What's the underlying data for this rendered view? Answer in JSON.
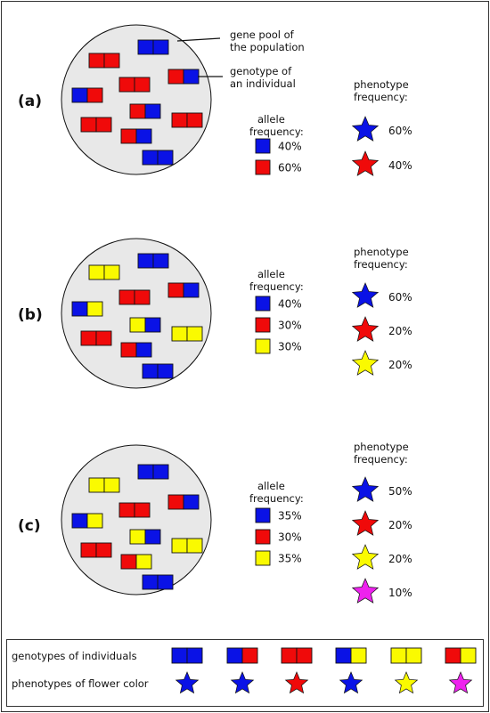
{
  "colors": {
    "blue": "#0a12e6",
    "red": "#f00a0a",
    "yellow": "#fafa00",
    "magenta": "#ee22ee",
    "circle_fill": "#e8e8e8",
    "outline": "#111111"
  },
  "annotations": {
    "gene_pool": [
      "gene pool of",
      "the population"
    ],
    "genotype": [
      "genotype of",
      "an individual"
    ]
  },
  "panels": [
    {
      "label": "(a)",
      "genotypes": [
        "BB",
        "RR",
        "RB",
        "RR",
        "BR",
        "RB",
        "RR",
        "RR",
        "RB",
        "BB"
      ],
      "allele_title": [
        "allele",
        "frequency:"
      ],
      "alleles": [
        {
          "color": "blue",
          "value": "40%"
        },
        {
          "color": "red",
          "value": "60%"
        }
      ],
      "phenotype_title": [
        "phenotype",
        "frequency:"
      ],
      "phenotypes": [
        {
          "color": "blue",
          "value": "60%"
        },
        {
          "color": "red",
          "value": "40%"
        }
      ]
    },
    {
      "label": "(b)",
      "genotypes": [
        "BB",
        "YY",
        "RB",
        "RR",
        "BY",
        "YB",
        "YY",
        "RR",
        "RB",
        "BB"
      ],
      "allele_title": [
        "allele",
        "frequency:"
      ],
      "alleles": [
        {
          "color": "blue",
          "value": "40%"
        },
        {
          "color": "red",
          "value": "30%"
        },
        {
          "color": "yellow",
          "value": "30%"
        }
      ],
      "phenotype_title": [
        "phenotype",
        "frequency:"
      ],
      "phenotypes": [
        {
          "color": "blue",
          "value": "60%"
        },
        {
          "color": "red",
          "value": "20%"
        },
        {
          "color": "yellow",
          "value": "20%"
        }
      ]
    },
    {
      "label": "(c)",
      "genotypes": [
        "BB",
        "YY",
        "RB",
        "RR",
        "BY",
        "YB",
        "YY",
        "RR",
        "RY",
        "BB"
      ],
      "allele_title": [
        "allele",
        "frequency:"
      ],
      "alleles": [
        {
          "color": "blue",
          "value": "35%"
        },
        {
          "color": "red",
          "value": "30%"
        },
        {
          "color": "yellow",
          "value": "35%"
        }
      ],
      "phenotype_title": [
        "phenotype",
        "frequency:"
      ],
      "phenotypes": [
        {
          "color": "blue",
          "value": "50%"
        },
        {
          "color": "red",
          "value": "20%"
        },
        {
          "color": "yellow",
          "value": "20%"
        },
        {
          "color": "magenta",
          "value": "10%"
        }
      ]
    }
  ],
  "legend": {
    "genotypes_label": "genotypes of individuals",
    "phenotypes_label": "phenotypes of flower color",
    "items": [
      {
        "genotype": "BB",
        "phenotype": "blue"
      },
      {
        "genotype": "BR",
        "phenotype": "blue"
      },
      {
        "genotype": "RR",
        "phenotype": "red"
      },
      {
        "genotype": "BY",
        "phenotype": "blue"
      },
      {
        "genotype": "YY",
        "phenotype": "yellow"
      },
      {
        "genotype": "RY",
        "phenotype": "magenta"
      }
    ]
  }
}
